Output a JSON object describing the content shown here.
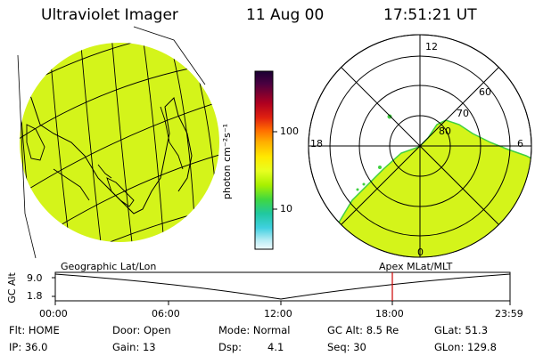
{
  "header": {
    "title": "Ultraviolet Imager",
    "date": "11 Aug 00",
    "time": "17:51:21 UT"
  },
  "colorbar": {
    "unit_label": "photon cm⁻²s⁻¹",
    "ticks": [
      "100",
      "10"
    ],
    "colors": [
      "#1a0033",
      "#3a0044",
      "#6a0030",
      "#a00020",
      "#d01010",
      "#ff4000",
      "#ff9000",
      "#ffd000",
      "#ffff40",
      "#c8ff00",
      "#70e000",
      "#20d080",
      "#20c0d0",
      "#80e0f0",
      "#e0f8ff"
    ]
  },
  "polar_plot": {
    "mlt_labels": {
      "top": "12",
      "left": "18",
      "right": "6",
      "bottom": "0"
    },
    "lat_labels": [
      "60",
      "70",
      "80"
    ]
  },
  "timeline": {
    "left_label": "Geographic Lat/Lon",
    "right_label": "Apex MLat/MLT",
    "y_axis_title": "GC Alt",
    "y_max": "9.0",
    "y_min": "1.8",
    "x_ticks": [
      "00:00",
      "06:00",
      "12:00",
      "18:00",
      "23:59"
    ],
    "current_time_marker": "17:51",
    "marker_color": "#cc0000"
  },
  "info": {
    "row1": {
      "flt": "Flt: HOME",
      "door": "Door: Open",
      "mode": "Mode: Normal",
      "gcalt": "GC Alt: 8.5 Re",
      "glat": "GLat: 51.3"
    },
    "row2": {
      "ip": "IP: 36.0",
      "gain": "Gain: 13",
      "dsp_label": "Dsp:",
      "dsp_value": "4.1",
      "seq": "Seq: 30",
      "glon": "GLon: 129.8"
    }
  }
}
